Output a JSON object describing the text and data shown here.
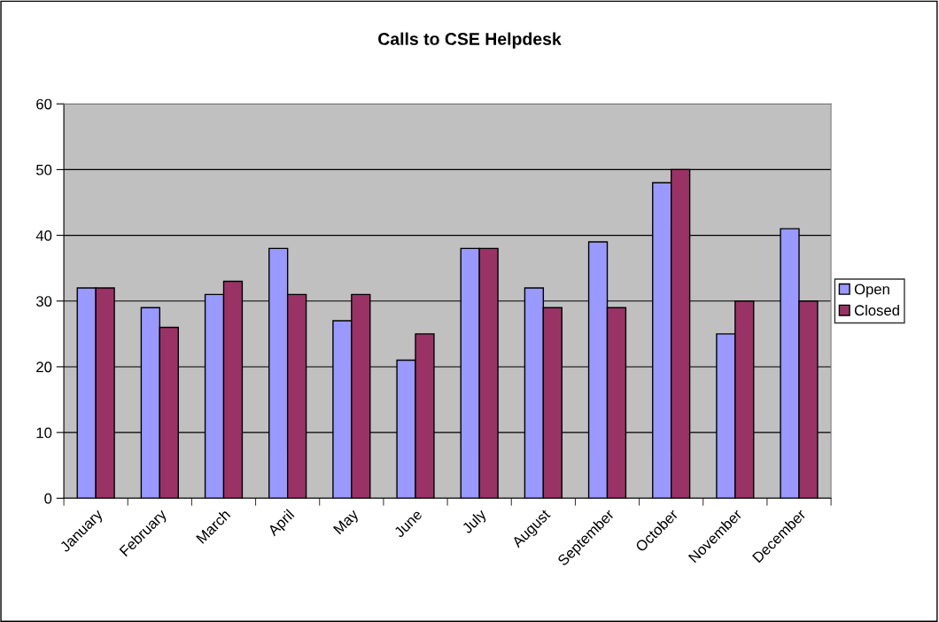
{
  "chart_data": {
    "type": "bar",
    "title": "Calls to CSE Helpdesk",
    "categories": [
      "January",
      "February",
      "March",
      "April",
      "May",
      "June",
      "July",
      "August",
      "September",
      "October",
      "November",
      "December"
    ],
    "series": [
      {
        "name": "Open",
        "color": "#9999ff",
        "values": [
          32,
          29,
          31,
          38,
          27,
          21,
          38,
          32,
          39,
          48,
          25,
          41
        ]
      },
      {
        "name": "Closed",
        "color": "#993366",
        "values": [
          32,
          26,
          33,
          31,
          31,
          25,
          38,
          29,
          29,
          50,
          30,
          30
        ]
      }
    ],
    "ylim": [
      0,
      60
    ],
    "yticks": [
      0,
      10,
      20,
      30,
      40,
      50,
      60
    ],
    "grid": "y",
    "legend": "right"
  }
}
